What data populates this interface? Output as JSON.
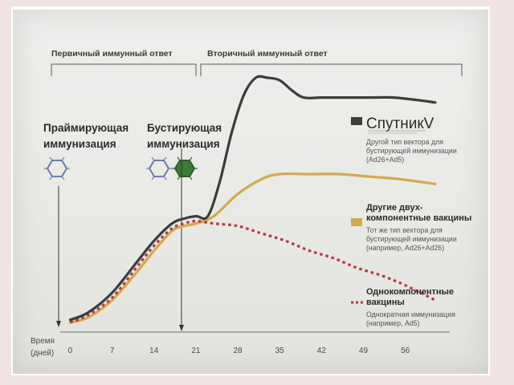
{
  "chart_data": {
    "type": "line",
    "xlabel": "Время (дней)",
    "xlabel_lines": [
      "Время",
      "(дней)"
    ],
    "x_ticks": [
      0,
      7,
      14,
      21,
      28,
      35,
      42,
      49,
      56
    ],
    "xlim": [
      -1,
      62
    ],
    "ylim": [
      0,
      100
    ],
    "phases": [
      {
        "label": "Первичный иммунный ответ",
        "range": [
          0,
          21
        ]
      },
      {
        "label": "Вторичный иммунный ответ",
        "range": [
          23,
          62
        ]
      }
    ],
    "annotations": [
      {
        "lines": [
          "Праймирующая",
          "иммунизация"
        ],
        "x": 0
      },
      {
        "lines": [
          "Бустирующая",
          "иммунизация"
        ],
        "x": 21
      }
    ],
    "series": [
      {
        "name": "СпутникV",
        "description": [
          "Другой тип вектора для",
          "бустирующей иммунизации",
          "(Ad26+Ad5)"
        ],
        "color": "#3b3c3b",
        "style": "solid",
        "x": [
          0,
          3,
          7,
          11,
          14,
          17,
          19,
          21,
          23,
          25,
          27,
          29,
          31,
          33,
          35,
          37,
          39,
          42,
          46,
          50,
          54,
          58,
          61
        ],
        "y": [
          2,
          5,
          13,
          25,
          34,
          41,
          43,
          44,
          44,
          58,
          78,
          93,
          100,
          100,
          99,
          95,
          92,
          92,
          92,
          92,
          92,
          91,
          90
        ]
      },
      {
        "name": "Другие двух-компонентные вакцины",
        "name_lines": [
          "Другие двух-",
          "компонентные вакцины"
        ],
        "description": [
          "Тот же тип вектора для",
          "бустирующей иммунизации",
          "(например, Ad26+Ad26)"
        ],
        "color": "#d2aa4a",
        "style": "solid",
        "x": [
          0,
          3,
          7,
          11,
          14,
          17,
          19,
          21,
          24,
          28,
          32,
          35,
          40,
          45,
          50,
          55,
          61
        ],
        "y": [
          1,
          3,
          10,
          21,
          30,
          38,
          40,
          41,
          44,
          53,
          59,
          61,
          61,
          61,
          60,
          59,
          57
        ]
      },
      {
        "name": "Однокомпонентные вакцины",
        "name_lines": [
          "Однокомпонентные",
          "вакцины"
        ],
        "description": [
          "Однократная иммунизация",
          "(например, Ad5)"
        ],
        "color": "#b5383a",
        "style": "dotted",
        "x": [
          0,
          3,
          7,
          11,
          14,
          17,
          19,
          21,
          24,
          28,
          32,
          36,
          40,
          44,
          48,
          52,
          56,
          61
        ],
        "y": [
          1,
          4,
          11,
          23,
          32,
          39,
          41,
          42,
          41,
          40,
          37,
          34,
          30,
          27,
          23,
          20,
          16,
          10
        ]
      }
    ]
  }
}
